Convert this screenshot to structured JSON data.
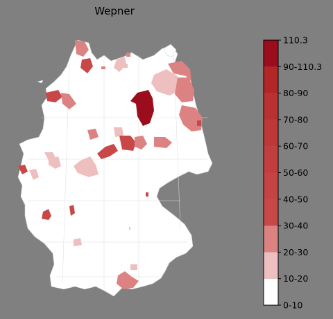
{
  "title": "Wepner",
  "legend": {
    "bins": [
      {
        "label": "0-10",
        "color": "#ffffff"
      },
      {
        "label": "10-20",
        "color": "#eebfbf"
      },
      {
        "label": "20-30",
        "color": "#dc8282"
      },
      {
        "label": "30-40",
        "color": "#c84848"
      },
      {
        "label": "40-50",
        "color": "#c54343"
      },
      {
        "label": "50-60",
        "color": "#c23e3e"
      },
      {
        "label": "60-70",
        "color": "#be3838"
      },
      {
        "label": "70-80",
        "color": "#ba3131"
      },
      {
        "label": "80-90",
        "color": "#b22626"
      },
      {
        "label": "90-110.3",
        "color": "#a81a1a"
      },
      {
        "label": "110.3",
        "color": "#9b0d1c"
      }
    ],
    "top_label": "110.3"
  },
  "map": {
    "region": "Germany",
    "unit": "districts (Kreise)",
    "background": "#808080",
    "border_color": "#d0d0d0",
    "highlighted_districts_count": 36
  }
}
